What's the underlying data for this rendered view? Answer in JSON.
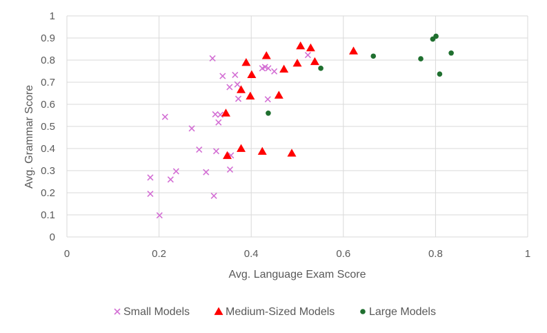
{
  "chart_data": {
    "type": "scatter",
    "title": "",
    "xlabel": "Avg. Language Exam Score",
    "ylabel": "Avg. Grammar Score",
    "xlim": [
      0,
      1
    ],
    "ylim": [
      0,
      1
    ],
    "x_ticks": [
      "0",
      "0.2",
      "0.4",
      "0.6",
      "0.8",
      "1"
    ],
    "y_ticks": [
      "0",
      "0.1",
      "0.2",
      "0.3",
      "0.4",
      "0.5",
      "0.6",
      "0.7",
      "0.8",
      "0.9",
      "1"
    ],
    "grid": true,
    "legend_position": "bottom",
    "series": [
      {
        "name": "Small Models",
        "marker": "x",
        "color": "#D36FD4",
        "points": [
          [
            0.316,
            0.808
          ],
          [
            0.213,
            0.543
          ],
          [
            0.271,
            0.491
          ],
          [
            0.181,
            0.269
          ],
          [
            0.225,
            0.26
          ],
          [
            0.237,
            0.297
          ],
          [
            0.287,
            0.395
          ],
          [
            0.302,
            0.293
          ],
          [
            0.181,
            0.195
          ],
          [
            0.201,
            0.098
          ],
          [
            0.319,
            0.186
          ],
          [
            0.322,
            0.555
          ],
          [
            0.329,
            0.518
          ],
          [
            0.333,
            0.553
          ],
          [
            0.338,
            0.728
          ],
          [
            0.353,
            0.678
          ],
          [
            0.365,
            0.733
          ],
          [
            0.37,
            0.69
          ],
          [
            0.372,
            0.625
          ],
          [
            0.324,
            0.388
          ],
          [
            0.356,
            0.369
          ],
          [
            0.354,
            0.305
          ],
          [
            0.424,
            0.763
          ],
          [
            0.43,
            0.769
          ],
          [
            0.437,
            0.763
          ],
          [
            0.45,
            0.749
          ],
          [
            0.436,
            0.623
          ],
          [
            0.523,
            0.823
          ]
        ]
      },
      {
        "name": "Medium-Sized Models",
        "marker": "triangle",
        "color": "#FF0000",
        "points": [
          [
            0.389,
            0.789
          ],
          [
            0.433,
            0.82
          ],
          [
            0.507,
            0.864
          ],
          [
            0.529,
            0.855
          ],
          [
            0.401,
            0.734
          ],
          [
            0.471,
            0.759
          ],
          [
            0.5,
            0.786
          ],
          [
            0.538,
            0.793
          ],
          [
            0.622,
            0.841
          ],
          [
            0.378,
            0.666
          ],
          [
            0.398,
            0.637
          ],
          [
            0.46,
            0.641
          ],
          [
            0.345,
            0.56
          ],
          [
            0.348,
            0.368
          ],
          [
            0.378,
            0.4
          ],
          [
            0.424,
            0.387
          ],
          [
            0.488,
            0.379
          ]
        ]
      },
      {
        "name": "Large Models",
        "marker": "circle",
        "color": "#1F6F2F",
        "points": [
          [
            0.437,
            0.56
          ],
          [
            0.551,
            0.763
          ],
          [
            0.665,
            0.818
          ],
          [
            0.768,
            0.806
          ],
          [
            0.794,
            0.895
          ],
          [
            0.801,
            0.908
          ],
          [
            0.809,
            0.737
          ],
          [
            0.834,
            0.832
          ]
        ]
      }
    ]
  }
}
